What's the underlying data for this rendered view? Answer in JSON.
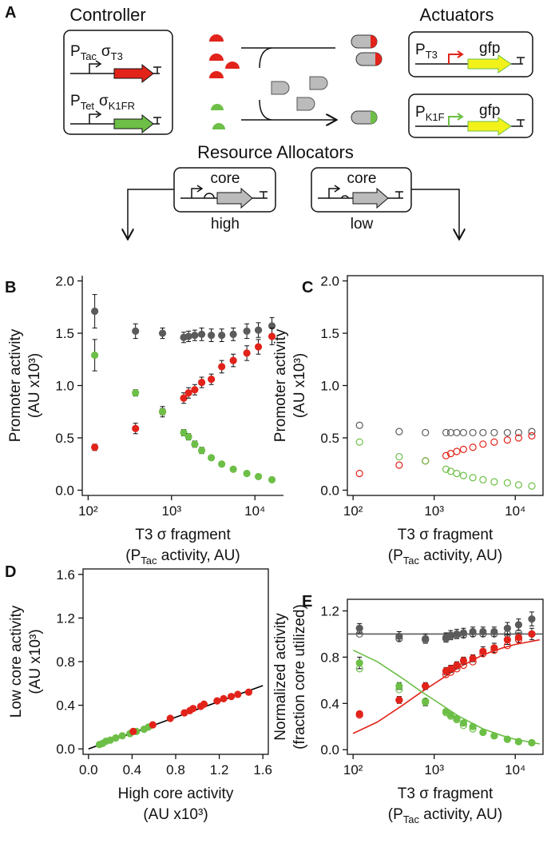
{
  "diagram": {
    "panel": "A",
    "controller_title": "Controller",
    "controller_1_promoter": [
      "P",
      "Tac"
    ],
    "controller_1_gene": [
      "σ",
      "T3"
    ],
    "controller_2_promoter": [
      "P",
      "Tet"
    ],
    "controller_2_gene": [
      "σ",
      "K1FR"
    ],
    "actuators_title": "Actuators",
    "actuator_1_promoter": [
      "P",
      "T3"
    ],
    "actuator_1_gene": "gfp",
    "actuator_2_promoter": [
      "P",
      "K1F"
    ],
    "actuator_2_gene": "gfp",
    "allocators_title": "Resource Allocators",
    "allocator_high_gene": "core",
    "allocator_high_label": "high",
    "allocator_low_gene": "core",
    "allocator_low_label": "low"
  },
  "chart_data": [
    {
      "type": "scatter",
      "panel": "B",
      "frame": "axes",
      "xlog": true,
      "x": [
        120,
        370,
        780,
        1400,
        1600,
        1900,
        2300,
        3000,
        4000,
        5500,
        8000,
        11000,
        16000
      ],
      "xlim": [
        85,
        22000
      ],
      "xticks": [
        {
          "value": 100,
          "label": "10²"
        },
        {
          "value": 1000,
          "label": "10³"
        },
        {
          "value": 10000,
          "label": "10⁴"
        }
      ],
      "ylim": [
        -0.05,
        2.05
      ],
      "yticks": [
        {
          "value": 0,
          "label": "0.0"
        },
        0.5,
        {
          "value": 1,
          "label": "1.0"
        },
        1.5,
        {
          "value": 2,
          "label": "2.0"
        }
      ],
      "x_label": [
        [
          "T3 σ fragment"
        ],
        [
          "(P",
          "Tac",
          " activity, AU)"
        ]
      ],
      "y_label": [
        [
          "Promoter activity"
        ],
        [
          "(AU x10³)"
        ]
      ],
      "series": [
        {
          "color": "#5b5b5b",
          "marker": "filled",
          "values": [
            1.71,
            1.52,
            1.5,
            1.46,
            1.47,
            1.48,
            1.49,
            1.48,
            1.48,
            1.49,
            1.52,
            1.53,
            1.57
          ],
          "errors": [
            0.16,
            0.07,
            0.05,
            0.05,
            0.05,
            0.05,
            0.06,
            0.06,
            0.06,
            0.06,
            0.07,
            0.07,
            0.08
          ]
        },
        {
          "color": "#e2231a",
          "marker": "filled",
          "values": [
            0.41,
            0.59,
            0.75,
            0.88,
            0.93,
            0.96,
            1.03,
            1.06,
            1.18,
            1.24,
            1.31,
            1.37,
            1.47
          ],
          "errors": [
            0.03,
            0.05,
            0.05,
            0.05,
            0.05,
            0.05,
            0.05,
            0.05,
            0.06,
            0.06,
            0.07,
            0.07,
            0.08
          ]
        },
        {
          "color": "#6dbf47",
          "marker": "filled",
          "values": [
            1.29,
            0.93,
            0.75,
            0.55,
            0.51,
            0.44,
            0.38,
            0.31,
            0.25,
            0.2,
            0.16,
            0.13,
            0.1
          ],
          "errors": [
            0.15,
            0.03,
            0.03,
            0.03,
            0.03,
            0.03,
            0.03,
            0.02,
            0.02,
            0.02,
            0.02,
            0.02,
            0.02
          ]
        }
      ]
    },
    {
      "type": "scatter",
      "panel": "C",
      "frame": "box",
      "xlog": true,
      "x": [
        120,
        370,
        780,
        1400,
        1600,
        1900,
        2300,
        3000,
        4000,
        5500,
        8000,
        11000,
        16000
      ],
      "xlim": [
        85,
        22000
      ],
      "xticks": [
        {
          "value": 100,
          "label": "10²"
        },
        {
          "value": 1000,
          "label": "10³"
        },
        {
          "value": 10000,
          "label": "10⁴"
        }
      ],
      "ylim": [
        -0.05,
        2.05
      ],
      "yticks": [
        {
          "value": 0,
          "label": "0.0"
        },
        0.5,
        {
          "value": 1,
          "label": "1.0"
        },
        1.5,
        {
          "value": 2,
          "label": "2.0"
        }
      ],
      "x_label": [
        [
          "T3 σ fragment"
        ],
        [
          "(P",
          "Tac",
          " activity, AU)"
        ]
      ],
      "y_label": [
        [
          "Promoter activity"
        ],
        [
          "(AU x10³)"
        ]
      ],
      "series": [
        {
          "color": "#5b5b5b",
          "marker": "open",
          "values": [
            0.62,
            0.56,
            0.55,
            0.55,
            0.55,
            0.55,
            0.55,
            0.55,
            0.55,
            0.55,
            0.55,
            0.55,
            0.56
          ]
        },
        {
          "color": "#e2231a",
          "marker": "open",
          "values": [
            0.16,
            0.24,
            0.28,
            0.33,
            0.35,
            0.37,
            0.39,
            0.41,
            0.44,
            0.46,
            0.48,
            0.5,
            0.52
          ]
        },
        {
          "color": "#6dbf47",
          "marker": "open",
          "values": [
            0.46,
            0.32,
            0.28,
            0.2,
            0.18,
            0.16,
            0.14,
            0.12,
            0.1,
            0.08,
            0.07,
            0.05,
            0.04
          ]
        }
      ]
    },
    {
      "type": "scatter",
      "panel": "D",
      "frame": "box",
      "xlog": false,
      "xlim": [
        -0.05,
        1.65
      ],
      "xticks": [
        {
          "value": 0,
          "label": "0.0"
        },
        0.4,
        0.8,
        1.2,
        1.6
      ],
      "ylim": [
        -0.05,
        1.65
      ],
      "yticks": [
        {
          "value": 0,
          "label": "0.0"
        },
        0.4,
        0.8,
        1.2,
        1.6
      ],
      "x_label": [
        [
          "High core activity"
        ],
        [
          "(AU x10³)"
        ]
      ],
      "y_label": [
        [
          "Low core activity"
        ],
        [
          "(AU x10³)"
        ]
      ],
      "series": [
        {
          "color": "#000000",
          "style": "line",
          "x": [
            0,
            1.6
          ],
          "values": [
            0,
            0.58
          ]
        },
        {
          "color": "#6dbf47",
          "marker": "filled",
          "x": [
            0.1,
            0.13,
            0.16,
            0.2,
            0.25,
            0.31,
            0.38,
            0.44,
            0.51,
            0.55
          ],
          "values": [
            0.04,
            0.05,
            0.07,
            0.08,
            0.1,
            0.12,
            0.14,
            0.16,
            0.18,
            0.2
          ]
        },
        {
          "color": "#e2231a",
          "marker": "filled",
          "x": [
            0.41,
            0.59,
            0.75,
            0.88,
            0.93,
            0.96,
            1.03,
            1.06,
            1.18,
            1.24,
            1.31,
            1.37,
            1.47
          ],
          "values": [
            0.16,
            0.22,
            0.28,
            0.33,
            0.35,
            0.37,
            0.39,
            0.41,
            0.44,
            0.46,
            0.48,
            0.5,
            0.52
          ]
        }
      ]
    },
    {
      "type": "scatter",
      "panel": "E",
      "frame": "box",
      "xlog": true,
      "x": [
        120,
        370,
        780,
        1400,
        1600,
        1900,
        2300,
        3000,
        4000,
        5500,
        8000,
        11000,
        16000
      ],
      "xlim": [
        85,
        22000
      ],
      "xticks": [
        {
          "value": 100,
          "label": "10²"
        },
        {
          "value": 1000,
          "label": "10³"
        },
        {
          "value": 10000,
          "label": "10⁴"
        }
      ],
      "ylim": [
        -0.04,
        1.3
      ],
      "yticks": [
        {
          "value": 0,
          "label": "0.0"
        },
        0.4,
        0.8,
        1.2
      ],
      "x_label": [
        [
          "T3 σ fragment"
        ],
        [
          "(P",
          "Tac",
          " activity, AU)"
        ]
      ],
      "y_label": [
        [
          "Normalized activity"
        ],
        [
          "(fraction core utilized)"
        ]
      ],
      "series": [
        {
          "color": "#5b5b5b",
          "style": "line",
          "x": [
            85,
            22000
          ],
          "values": [
            1,
            1
          ]
        },
        {
          "color": "#e2231a",
          "style": "line",
          "x": [
            100,
            200,
            400,
            700,
            1000,
            2000,
            4000,
            7000,
            10000,
            20000
          ],
          "values": [
            0.14,
            0.24,
            0.38,
            0.5,
            0.57,
            0.71,
            0.82,
            0.88,
            0.91,
            0.95
          ]
        },
        {
          "color": "#6dbf47",
          "style": "line",
          "x": [
            100,
            200,
            400,
            700,
            1000,
            2000,
            4000,
            7000,
            10000,
            20000
          ],
          "values": [
            0.86,
            0.76,
            0.62,
            0.5,
            0.43,
            0.29,
            0.18,
            0.12,
            0.09,
            0.05
          ]
        },
        {
          "color": "#5b5b5b",
          "marker": "filled",
          "values": [
            1.05,
            0.98,
            0.96,
            0.97,
            0.99,
            1.0,
            1.01,
            1.02,
            1.02,
            1.02,
            1.05,
            1.08,
            1.13
          ],
          "errors": [
            0.04,
            0.04,
            0.04,
            0.04,
            0.04,
            0.04,
            0.04,
            0.04,
            0.04,
            0.04,
            0.05,
            0.05,
            0.06
          ]
        },
        {
          "color": "#5b5b5b",
          "marker": "open",
          "values": [
            1.0,
            0.96,
            0.95,
            0.96,
            0.98,
            0.99,
            0.99,
            1.0,
            1.0,
            1.0,
            1.0,
            1.01,
            1.0
          ]
        },
        {
          "color": "#e2231a",
          "marker": "filled",
          "values": [
            0.31,
            0.43,
            0.55,
            0.68,
            0.7,
            0.73,
            0.77,
            0.79,
            0.85,
            0.88,
            0.95,
            0.97,
            1.0
          ],
          "errors": [
            0.02,
            0.03,
            0.03,
            0.03,
            0.03,
            0.03,
            0.03,
            0.03,
            0.04,
            0.04,
            0.04,
            0.04,
            0.05
          ]
        },
        {
          "color": "#e2231a",
          "marker": "open",
          "values": [
            0.3,
            0.43,
            0.55,
            0.65,
            0.67,
            0.7,
            0.73,
            0.76,
            0.83,
            0.86,
            0.9,
            0.95,
            1.0
          ]
        },
        {
          "color": "#6dbf47",
          "marker": "filled",
          "values": [
            0.75,
            0.55,
            0.41,
            0.33,
            0.3,
            0.27,
            0.23,
            0.2,
            0.15,
            0.12,
            0.09,
            0.07,
            0.06
          ],
          "errors": [
            0.05,
            0.03,
            0.03,
            0.02,
            0.02,
            0.02,
            0.02,
            0.02,
            0.01,
            0.01,
            0.01,
            0.01,
            0.01
          ]
        },
        {
          "color": "#6dbf47",
          "marker": "open",
          "values": [
            0.7,
            0.52,
            0.42,
            0.32,
            0.29,
            0.26,
            0.21,
            0.18,
            0.15,
            0.12,
            0.09,
            0.07,
            0.06
          ]
        }
      ]
    }
  ]
}
